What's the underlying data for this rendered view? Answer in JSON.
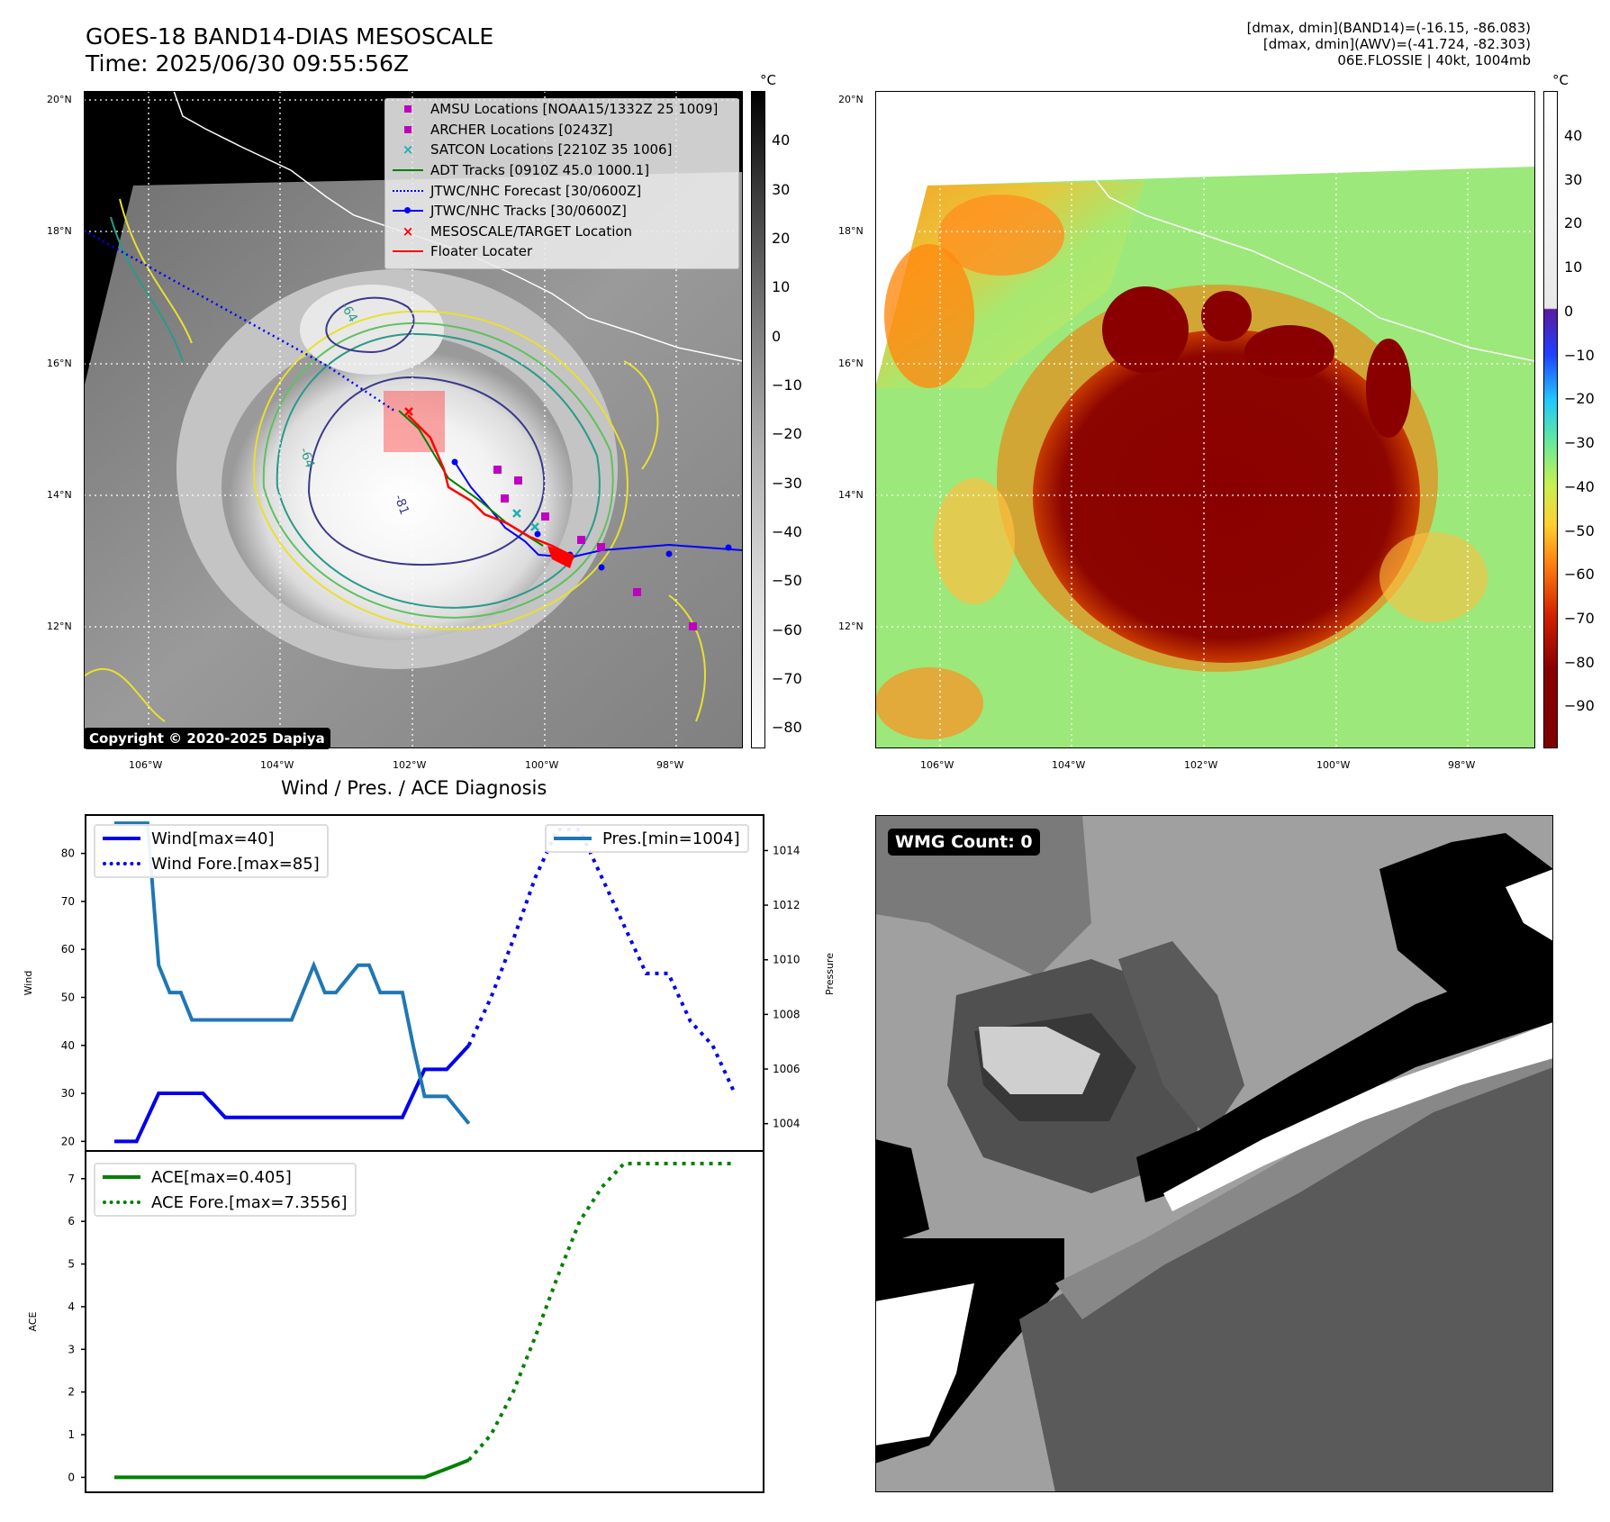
{
  "header": {
    "title_line1": "GOES-18 BAND14-DIAS MESOSCALE",
    "title_line2": "Time: 2025/06/30 09:55:56Z",
    "info_line1": "[dmax, dmin](BAND14)=(-16.15, -86.083)",
    "info_line2": "[dmax, dmin](AWV)=(-41.724, -82.303)",
    "info_line3": "06E.FLOSSIE | 40kt, 1004mb"
  },
  "map_axes": {
    "lat_labels": [
      "20°N",
      "18°N",
      "16°N",
      "14°N",
      "12°N"
    ],
    "lon_labels": [
      "106°W",
      "104°W",
      "102°W",
      "100°W",
      "98°W"
    ]
  },
  "ir_panel": {
    "copyright": "Copyright © 2020-2025 Dapiya",
    "colorbar_unit": "°C",
    "colorbar_ticks": [
      "40",
      "30",
      "20",
      "10",
      "0",
      "−10",
      "−20",
      "−30",
      "−40",
      "−50",
      "−60",
      "−70",
      "−80"
    ],
    "contour_labels": [
      "-64",
      "-81",
      "-64"
    ],
    "legend": [
      {
        "label": "AMSU Locations [NOAA15/1332Z 25 1009]",
        "color": "#c000c0",
        "marker": "square"
      },
      {
        "label": "ARCHER Locations [0243Z]",
        "color": "#c000c0",
        "marker": "square"
      },
      {
        "label": "SATCON Locations [2210Z 35 1006]",
        "color": "#20b0b0",
        "marker": "x"
      },
      {
        "label": "ADT Tracks [0910Z 45.0 1000.1]",
        "color": "#008000",
        "marker": "line"
      },
      {
        "label": "JTWC/NHC Forecast [30/0600Z]",
        "color": "#0000ff",
        "marker": "dotted"
      },
      {
        "label": "JTWC/NHC Tracks [30/0600Z]",
        "color": "#0000ff",
        "marker": "line-dot"
      },
      {
        "label": "MESOSCALE/TARGET Location",
        "color": "#ff0000",
        "marker": "x"
      },
      {
        "label": "Floater Locater",
        "color": "#ff0000",
        "marker": "line"
      }
    ]
  },
  "awv_panel": {
    "colorbar_unit": "°C",
    "colorbar_ticks": [
      "40",
      "30",
      "20",
      "10",
      "0",
      "−10",
      "−20",
      "−30",
      "−40",
      "−50",
      "−60",
      "−70",
      "−80",
      "−90"
    ]
  },
  "wmg_panel": {
    "label": "WMG Count: 0"
  },
  "chart_data": [
    {
      "type": "line",
      "title": "Wind / Pres. / ACE Diagnosis",
      "ylabel": "Wind",
      "y2label": "Pressure",
      "ylim": [
        18,
        88
      ],
      "y2lim": [
        1003,
        1015.3
      ],
      "yticks": [
        20,
        30,
        40,
        50,
        60,
        70,
        80
      ],
      "y2ticks": [
        1004,
        1006,
        1008,
        1010,
        1012,
        1014
      ],
      "series": [
        {
          "name": "Wind[max=40]",
          "color": "#0000ee",
          "style": "solid",
          "x": [
            0,
            1,
            2,
            3,
            4,
            5,
            6,
            7,
            8,
            9,
            10,
            11,
            12,
            13,
            14,
            15,
            16
          ],
          "values": [
            20,
            20,
            30,
            30,
            30,
            25,
            25,
            25,
            25,
            25,
            25,
            25,
            25,
            25,
            35,
            35,
            40
          ]
        },
        {
          "name": "Wind Fore.[max=85]",
          "color": "#0000ee",
          "style": "dotted",
          "x": [
            16,
            17,
            18,
            19,
            20,
            21,
            22,
            23,
            24,
            25,
            26,
            27,
            28
          ],
          "values": [
            40,
            50,
            62,
            75,
            85,
            85,
            75,
            65,
            55,
            55,
            45,
            40,
            30
          ]
        },
        {
          "name": "Pres.[min=1004]",
          "color": "#1f77b4",
          "style": "solid",
          "axis": "right",
          "x": [
            0,
            1,
            1.5,
            2,
            2.5,
            3,
            3.5,
            4,
            5,
            6,
            7,
            8,
            9,
            9.5,
            10,
            11,
            11.5,
            12,
            13,
            13.5,
            14,
            15,
            16
          ],
          "values": [
            1015,
            1015,
            1015,
            1009.8,
            1008.8,
            1008.8,
            1007.8,
            1007.8,
            1007.8,
            1007.8,
            1007.8,
            1007.8,
            1009.8,
            1008.8,
            1008.8,
            1009.8,
            1009.8,
            1008.8,
            1008.8,
            1006.8,
            1005,
            1005,
            1004
          ]
        }
      ]
    },
    {
      "type": "line",
      "ylabel": "ACE",
      "ylim": [
        -0.35,
        7.65
      ],
      "yticks": [
        0,
        1,
        2,
        3,
        4,
        5,
        6,
        7
      ],
      "series": [
        {
          "name": "ACE[max=0.405]",
          "color": "#008000",
          "style": "solid",
          "x": [
            0,
            2,
            4,
            6,
            8,
            10,
            12,
            14,
            15,
            16
          ],
          "values": [
            0,
            0,
            0,
            0,
            0,
            0,
            0,
            0,
            0.2,
            0.405
          ]
        },
        {
          "name": "ACE Fore.[max=7.3556]",
          "color": "#008000",
          "style": "dotted",
          "x": [
            16,
            17,
            18,
            19,
            20,
            21,
            22,
            23,
            24,
            25,
            26,
            27,
            28
          ],
          "values": [
            0.405,
            1.0,
            2.0,
            3.3,
            4.7,
            6.0,
            6.8,
            7.3556,
            7.3556,
            7.3556,
            7.3556,
            7.3556,
            7.3556
          ]
        }
      ]
    }
  ]
}
